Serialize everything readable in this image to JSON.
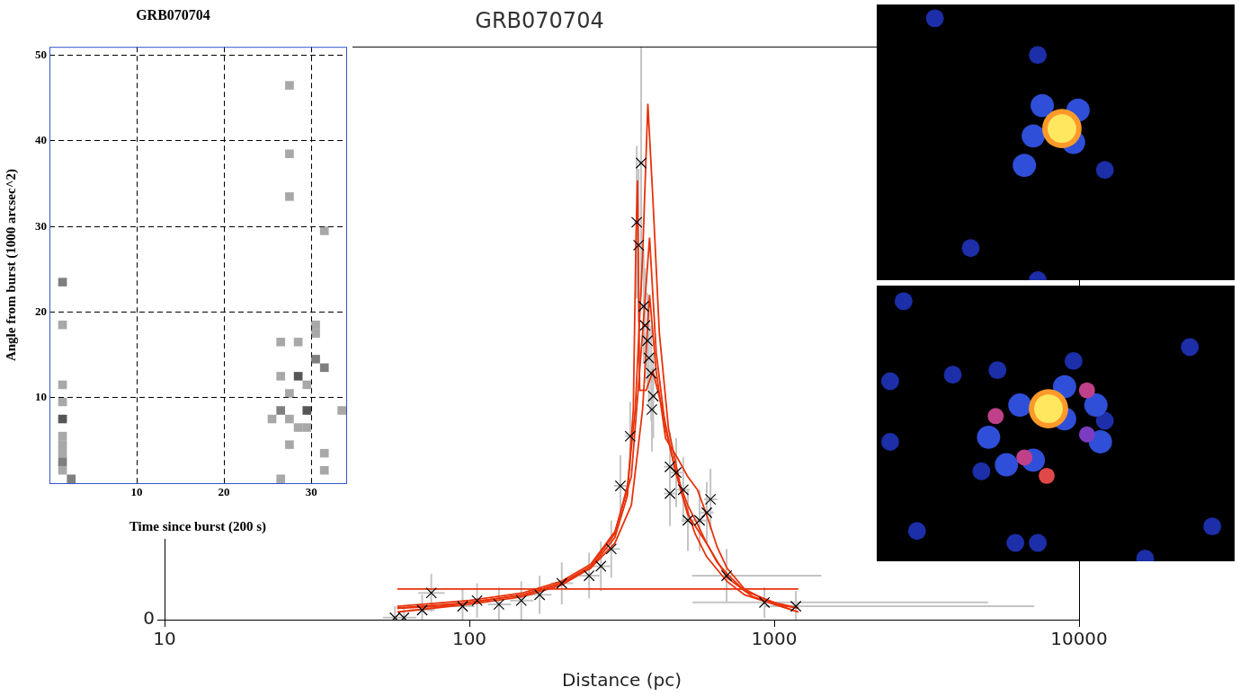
{
  "chart_data": [
    {
      "type": "heatmap",
      "title": "GRB070704",
      "x_label": "Time since burst (200 s)",
      "y_label": "Angle from burst (1000 arcsec^2)",
      "xlim": [
        0,
        34
      ],
      "ylim": [
        0,
        51
      ],
      "xticks": [
        10,
        20,
        30
      ],
      "yticks": [
        10,
        20,
        30,
        40,
        50
      ],
      "grid": true,
      "color": "#444444",
      "x": [
        1.5,
        1.5,
        1.5,
        1.5,
        1.5,
        1.5,
        1.5,
        1.5,
        1.5,
        1.5,
        2.5,
        27.5,
        27.5,
        27.5,
        31.5,
        30.5,
        30.5,
        28.5,
        26.5,
        26.5,
        28.5,
        29.5,
        27.5,
        30.5,
        31.5,
        29.5,
        26.5,
        25.5,
        27.5,
        28.5,
        29.5,
        33.5,
        27.5,
        26.5,
        31.5,
        31.5
      ],
      "y": [
        23.5,
        18.5,
        11.5,
        7.5,
        9.5,
        5.5,
        4.5,
        3.5,
        2.5,
        1.5,
        0.5,
        46.5,
        38.5,
        33.5,
        29.5,
        18.5,
        17.5,
        16.5,
        16.5,
        12.5,
        12.5,
        11.5,
        10.5,
        14.5,
        13.5,
        8.5,
        8.5,
        7.5,
        7.5,
        6.5,
        6.5,
        8.5,
        4.5,
        0.5,
        1.5,
        3.5
      ],
      "values": [
        2,
        1,
        1,
        3,
        1,
        1,
        1,
        1,
        2,
        1,
        2,
        1,
        1,
        1,
        1,
        1,
        1,
        1,
        1,
        1,
        3,
        1,
        1,
        2,
        2,
        3,
        2,
        1,
        1,
        1,
        1,
        1,
        1,
        1,
        1,
        1
      ]
    },
    {
      "type": "scatter",
      "title": "GRB070704",
      "x_label": "Distance (pc)",
      "log": "x",
      "xlim": [
        10,
        10000
      ],
      "ylim": [
        0,
        30
      ],
      "xticks": [
        10,
        100,
        1000,
        10000
      ],
      "yticks": [
        0
      ],
      "series": [
        {
          "type": "scatter",
          "marker": "x",
          "color": "#000000",
          "x": [
            57,
            61,
            70,
            75,
            95,
            106,
            125,
            148,
            170,
            201,
            247,
            270,
            292,
            313,
            337,
            354,
            359,
            366,
            373,
            377,
            384,
            388,
            395,
            397,
            401,
            455,
            455,
            477,
            503,
            521,
            569,
            601,
            618,
            698,
            929,
            1178
          ],
          "values": [
            0.1,
            0.1,
            0.5,
            1.4,
            0.7,
            1.0,
            0.8,
            1.0,
            1.3,
            1.9,
            2.3,
            2.8,
            3.7,
            7.0,
            9.6,
            20.8,
            19.6,
            23.9,
            16.4,
            15.4,
            14.6,
            13.7,
            12.9,
            11.0,
            11.7,
            8.0,
            6.6,
            7.7,
            6.8,
            5.2,
            5.2,
            5.6,
            6.3,
            2.3,
            0.9,
            0.7
          ],
          "xerr": [
            [
              5,
              5
            ],
            [
              5,
              6
            ],
            [
              6,
              7
            ],
            [
              7,
              8
            ],
            [
              8,
              9
            ],
            [
              9,
              10
            ],
            [
              10,
              12
            ],
            [
              12,
              14
            ],
            [
              14,
              16
            ],
            [
              16,
              18
            ],
            [
              18,
              20
            ],
            [
              18,
              20
            ],
            [
              18,
              20
            ],
            [
              15,
              15
            ],
            [
              12,
              12
            ],
            [
              8,
              8
            ],
            [
              8,
              8
            ],
            [
              8,
              8
            ],
            [
              8,
              8
            ],
            [
              8,
              8
            ],
            [
              8,
              8
            ],
            [
              8,
              9
            ],
            [
              9,
              9
            ],
            [
              9,
              9
            ],
            [
              9,
              9
            ],
            [
              20,
              20
            ],
            [
              20,
              20
            ],
            [
              20,
              22
            ],
            [
              22,
              24
            ],
            [
              25,
              25
            ],
            [
              28,
              30
            ],
            [
              30,
              32
            ],
            [
              30,
              32
            ],
            [
              160,
              730
            ],
            [
              390,
              4100
            ],
            [
              250,
              5950
            ]
          ],
          "yerr": [
            0.6,
            0.6,
            0.8,
            1.0,
            0.9,
            0.9,
            0.9,
            1.0,
            1.0,
            1.1,
            1.2,
            1.3,
            1.5,
            1.6,
            1.8,
            4,
            4,
            7,
            3,
            3,
            2.5,
            2.5,
            2.5,
            2.2,
            2.2,
            1.8,
            1.7,
            1.8,
            1.7,
            1.6,
            1.6,
            1.6,
            1.6,
            1.4,
            0.8,
            0.8
          ]
        },
        {
          "type": "line",
          "color": "#e8320a",
          "x": [
            58,
            80,
            100,
            150,
            200,
            250,
            300,
            330,
            350,
            370,
            385,
            400,
            420,
            450,
            500,
            550,
            600,
            700,
            800,
            1000,
            1200
          ],
          "values": [
            0.6,
            0.7,
            0.9,
            1.3,
            1.9,
            2.8,
            4.5,
            7,
            11,
            19,
            27,
            22,
            15,
            10,
            6.5,
            4.5,
            3.3,
            2.0,
            1.3,
            0.8,
            0.6
          ]
        },
        {
          "type": "line",
          "color": "#e8320a",
          "x": [
            58,
            100,
            150,
            200,
            250,
            300,
            330,
            345,
            352,
            356,
            362,
            380,
            400,
            430,
            470,
            520,
            600,
            700,
            850,
            1200
          ],
          "values": [
            0.4,
            0.8,
            1.2,
            1.8,
            2.7,
            4.3,
            6.5,
            11,
            20,
            23,
            12,
            12,
            13,
            11,
            8,
            5.5,
            4.0,
            2.2,
            1.2,
            0.4
          ]
        },
        {
          "type": "line",
          "color": "#e8320a",
          "x": [
            58,
            100,
            150,
            200,
            250,
            300,
            340,
            370,
            390,
            410,
            440,
            480,
            520,
            560,
            600,
            650,
            700,
            800,
            1000,
            1200
          ],
          "values": [
            0.6,
            0.9,
            1.3,
            1.9,
            2.7,
            4,
            6,
            11,
            17,
            13,
            9.5,
            8.5,
            7.5,
            6.8,
            5.5,
            3.8,
            2.7,
            1.6,
            0.8,
            0.4
          ]
        },
        {
          "type": "line",
          "color": "#e8320a",
          "x": [
            58,
            100,
            150,
            200,
            250,
            300,
            340,
            370,
            390,
            410,
            440,
            480,
            520,
            560,
            600,
            650,
            700,
            800,
            1000,
            1200
          ],
          "values": [
            0.7,
            1.0,
            1.4,
            2.0,
            2.9,
            4.6,
            7.5,
            15,
            20,
            14,
            10,
            7.5,
            6,
            5,
            4,
            3,
            2.4,
            1.5,
            0.9,
            0.6
          ]
        },
        {
          "type": "line",
          "color": "#e8320a",
          "x": [
            58,
            1200
          ],
          "values": [
            1.6,
            1.6
          ]
        }
      ]
    },
    {
      "type": "bubble",
      "tick_labels": false,
      "xlim": [
        0,
        40
      ],
      "ylim": [
        0,
        30
      ],
      "x": [
        6.5,
        18,
        25.5,
        10.5,
        18,
        17.5,
        22.5,
        16.5,
        18.5,
        20,
        22,
        20.7,
        20.7
      ],
      "y": [
        28.5,
        24.5,
        12,
        3.5,
        0,
        15.7,
        18.5,
        12.5,
        19,
        16,
        15,
        16.5,
        16.5
      ],
      "sizes": [
        1.0,
        1.0,
        1.0,
        1.0,
        1.0,
        1.3,
        1.3,
        1.3,
        1.3,
        1.3,
        1.3,
        2.2,
        1.6
      ],
      "values": [
        0.25,
        0.25,
        0.25,
        0.25,
        0.25,
        0.35,
        0.35,
        0.35,
        0.35,
        0.35,
        0.35,
        0.8,
        1.0
      ]
    },
    {
      "type": "bubble",
      "tick_labels": false,
      "xlim": [
        0,
        40
      ],
      "ylim": [
        0,
        30
      ],
      "x": [
        1.5,
        3,
        8.5,
        13.5,
        22,
        25.5,
        35,
        37.5,
        30,
        4.5,
        15.5,
        18,
        11.7,
        1.5,
        12.5,
        14.5,
        17.5,
        21,
        24.5,
        25,
        16,
        21,
        23.5,
        13.3,
        16.5,
        23.5,
        19,
        19.2,
        19.2
      ],
      "y": [
        19.6,
        28.3,
        20.3,
        20.8,
        21.8,
        15.3,
        23.3,
        3.8,
        0.3,
        3.3,
        2,
        2,
        9.8,
        13,
        13.5,
        10.5,
        11,
        15.5,
        17,
        13,
        17,
        19,
        13.8,
        15.8,
        11.3,
        18.6,
        9.3,
        16.6,
        16.6
      ],
      "sizes": [
        1.0,
        1.0,
        1.0,
        1.0,
        1.0,
        1.0,
        1.0,
        1.0,
        1.0,
        1.0,
        1.0,
        1.0,
        1.0,
        1.0,
        1.3,
        1.3,
        1.3,
        1.3,
        1.3,
        1.3,
        1.3,
        1.3,
        0.9,
        0.9,
        0.9,
        0.9,
        0.9,
        2.2,
        1.6
      ],
      "values": [
        0.25,
        0.25,
        0.25,
        0.25,
        0.25,
        0.25,
        0.25,
        0.25,
        0.25,
        0.25,
        0.25,
        0.25,
        0.25,
        0.25,
        0.4,
        0.4,
        0.4,
        0.4,
        0.4,
        0.4,
        0.4,
        0.4,
        0.55,
        0.6,
        0.6,
        0.6,
        0.7,
        0.8,
        1.0
      ]
    }
  ]
}
